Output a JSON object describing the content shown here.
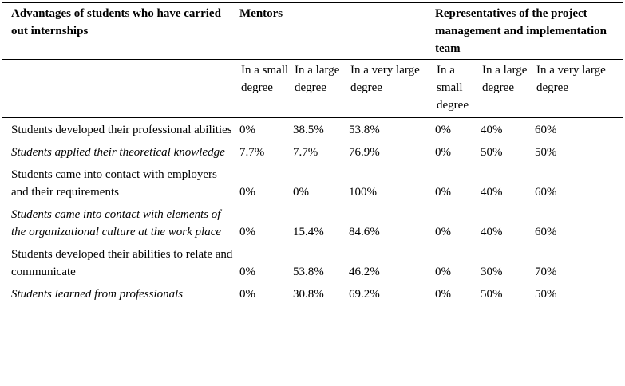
{
  "header": {
    "col1": "Advantages of students who have carried out internships",
    "group1": "Mentors",
    "group2": "Representatives of the project management and implementation team"
  },
  "subheaders": [
    "In a small degree",
    "In a large degree",
    "In a very large degree",
    "In a small degree",
    "In a large degree",
    "In a very large degree"
  ],
  "rows": [
    {
      "label": "Students developed their professional abilities",
      "italic": false,
      "values": [
        "0%",
        "38.5%",
        "53.8%",
        "0%",
        "40%",
        "60%"
      ]
    },
    {
      "label": "Students applied their theoretical knowledge",
      "italic": true,
      "values": [
        "7.7%",
        "7.7%",
        "76.9%",
        "0%",
        "50%",
        "50%"
      ]
    },
    {
      "label": "Students came into contact with employers and their requirements",
      "italic": false,
      "values": [
        "0%",
        "0%",
        "100%",
        "0%",
        "40%",
        "60%"
      ]
    },
    {
      "label": "Students came into contact with elements of the organizational culture at the work place",
      "italic": true,
      "values": [
        "0%",
        "15.4%",
        "84.6%",
        "0%",
        "40%",
        "60%"
      ]
    },
    {
      "label": "Students developed their abilities to relate and communicate",
      "italic": false,
      "values": [
        "0%",
        "53.8%",
        "46.2%",
        "0%",
        "30%",
        "70%"
      ]
    },
    {
      "label": "Students learned from professionals",
      "italic": true,
      "values": [
        "0%",
        "30.8%",
        "69.2%",
        "0%",
        "50%",
        "50%"
      ]
    }
  ]
}
